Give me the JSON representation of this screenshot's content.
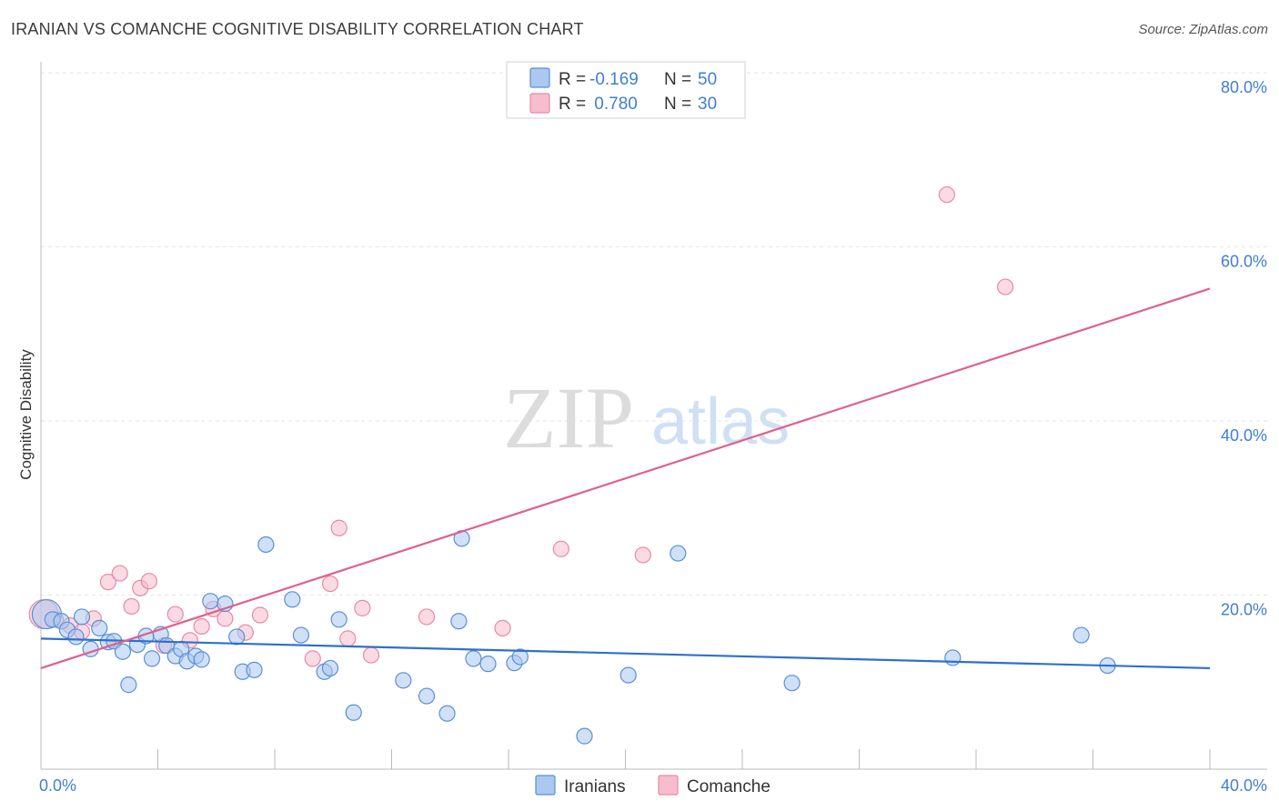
{
  "title": "IRANIAN VS COMANCHE COGNITIVE DISABILITY CORRELATION CHART",
  "source": "Source: ZipAtlas.com",
  "watermark": {
    "zip": "ZIP",
    "atlas": "atlas"
  },
  "colors": {
    "blue_fill": "#aac8f0",
    "blue_stroke": "#5b8fd6",
    "blue_line": "#2f6fcc",
    "pink_fill": "#f7bccd",
    "pink_stroke": "#e68aa6",
    "pink_line": "#e0608a",
    "grid": "#e6e6e6",
    "tick_text": "#3f7fd1"
  },
  "legend": {
    "rows": [
      {
        "r_label": "R =",
        "r_value": "-0.169",
        "n_label": "N =",
        "n_value": "50"
      },
      {
        "r_label": "R =",
        "r_value": " 0.780",
        "n_label": "N =",
        "n_value": "30"
      }
    ]
  },
  "bottom_legend": {
    "series1": "Iranians",
    "series2": "Comanche"
  },
  "chart_data": {
    "type": "scatter",
    "title": "IRANIAN VS COMANCHE COGNITIVE DISABILITY CORRELATION CHART",
    "xlabel": "",
    "ylabel": "Cognitive Disability",
    "xlim": [
      0,
      40
    ],
    "ylim": [
      0,
      80
    ],
    "x_tick_labels": [
      "0.0%",
      "40.0%"
    ],
    "y_ticks": [
      20,
      40,
      60,
      80
    ],
    "y_tick_labels": [
      "20.0%",
      "40.0%",
      "60.0%",
      "80.0%"
    ],
    "series": [
      {
        "name": "Iranians",
        "trend": {
          "x0": 0,
          "y0": 15.0,
          "x1": 40,
          "y1": 11.6
        },
        "points": [
          [
            0.2,
            17.8
          ],
          [
            0.4,
            17.2
          ],
          [
            0.7,
            17.0
          ],
          [
            0.9,
            16.0
          ],
          [
            1.2,
            15.2
          ],
          [
            1.4,
            17.5
          ],
          [
            1.7,
            13.8
          ],
          [
            2.0,
            16.2
          ],
          [
            2.3,
            14.6
          ],
          [
            2.5,
            14.7
          ],
          [
            2.8,
            13.5
          ],
          [
            3.0,
            9.7
          ],
          [
            3.3,
            14.3
          ],
          [
            3.6,
            15.3
          ],
          [
            3.8,
            12.7
          ],
          [
            4.1,
            15.5
          ],
          [
            4.3,
            14.2
          ],
          [
            4.6,
            13.0
          ],
          [
            4.8,
            13.8
          ],
          [
            5.0,
            12.4
          ],
          [
            5.3,
            13.0
          ],
          [
            5.5,
            12.6
          ],
          [
            5.8,
            19.3
          ],
          [
            6.3,
            19.0
          ],
          [
            6.7,
            15.2
          ],
          [
            6.9,
            11.2
          ],
          [
            7.3,
            11.4
          ],
          [
            7.7,
            25.8
          ],
          [
            8.6,
            19.5
          ],
          [
            8.9,
            15.4
          ],
          [
            9.7,
            11.2
          ],
          [
            9.9,
            11.6
          ],
          [
            10.2,
            17.2
          ],
          [
            10.7,
            6.5
          ],
          [
            12.4,
            10.2
          ],
          [
            13.2,
            8.4
          ],
          [
            13.9,
            6.4
          ],
          [
            14.3,
            17.0
          ],
          [
            14.4,
            26.5
          ],
          [
            14.8,
            12.7
          ],
          [
            15.3,
            12.1
          ],
          [
            16.2,
            12.2
          ],
          [
            16.4,
            12.9
          ],
          [
            18.6,
            3.8
          ],
          [
            20.1,
            10.8
          ],
          [
            21.8,
            24.8
          ],
          [
            25.7,
            9.9
          ],
          [
            31.2,
            12.8
          ],
          [
            35.6,
            15.4
          ],
          [
            36.5,
            11.9
          ]
        ]
      },
      {
        "name": "Comanche",
        "trend": {
          "x0": 0,
          "y0": 11.6,
          "x1": 40,
          "y1": 55.2
        },
        "points": [
          [
            0.5,
            17.2
          ],
          [
            1.0,
            16.5
          ],
          [
            1.4,
            15.8
          ],
          [
            1.8,
            17.3
          ],
          [
            2.3,
            21.5
          ],
          [
            2.7,
            22.5
          ],
          [
            3.1,
            18.7
          ],
          [
            3.4,
            20.8
          ],
          [
            3.7,
            21.6
          ],
          [
            4.2,
            14.2
          ],
          [
            4.6,
            17.8
          ],
          [
            5.1,
            14.8
          ],
          [
            5.5,
            16.4
          ],
          [
            5.9,
            18.4
          ],
          [
            6.3,
            17.3
          ],
          [
            7.0,
            15.7
          ],
          [
            7.5,
            17.7
          ],
          [
            9.3,
            12.7
          ],
          [
            9.9,
            21.3
          ],
          [
            10.2,
            27.7
          ],
          [
            10.5,
            15.0
          ],
          [
            11.0,
            18.5
          ],
          [
            11.3,
            13.1
          ],
          [
            13.2,
            17.5
          ],
          [
            15.8,
            16.2
          ],
          [
            17.8,
            25.3
          ],
          [
            20.6,
            24.6
          ],
          [
            31.0,
            66.0
          ],
          [
            33.0,
            55.4
          ],
          [
            0.1,
            17.8
          ]
        ]
      }
    ]
  }
}
